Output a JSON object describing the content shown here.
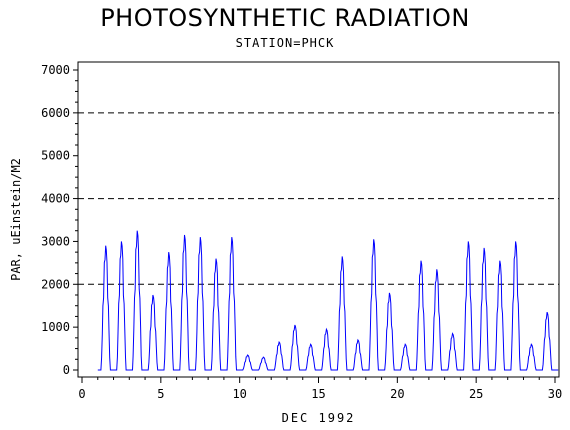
{
  "chart_data": {
    "type": "line",
    "title": "PHOTOSYNTHETIC RADIATION",
    "subtitle": "STATION=PHCK",
    "xlabel": "DEC 1992",
    "ylabel": "PAR, uEinstein/M2",
    "xlim": [
      0,
      30
    ],
    "ylim": [
      0,
      7000
    ],
    "x_ticks": [
      "0",
      "5",
      "10",
      "15",
      "20",
      "25",
      "30"
    ],
    "y_ticks": [
      "0",
      "1000",
      "2000",
      "3000",
      "4000",
      "5000",
      "6000",
      "7000"
    ],
    "reference_lines": [
      2000,
      4000,
      6000
    ],
    "grid": false,
    "legend": "none",
    "line_color": "#0000ff",
    "series": [
      {
        "daily_peaks": [
          {
            "day": 1.5,
            "peak": 2900
          },
          {
            "day": 2.5,
            "peak": 3000
          },
          {
            "day": 3.5,
            "peak": 3250
          },
          {
            "day": 4.5,
            "peak": 1750
          },
          {
            "day": 5.5,
            "peak": 2750
          },
          {
            "day": 6.5,
            "peak": 3150
          },
          {
            "day": 7.5,
            "peak": 3100
          },
          {
            "day": 8.5,
            "peak": 2600
          },
          {
            "day": 9.5,
            "peak": 3100
          },
          {
            "day": 10.5,
            "peak": 350
          },
          {
            "day": 11.5,
            "peak": 300
          },
          {
            "day": 12.5,
            "peak": 650
          },
          {
            "day": 13.5,
            "peak": 1050
          },
          {
            "day": 14.5,
            "peak": 600
          },
          {
            "day": 15.5,
            "peak": 950
          },
          {
            "day": 16.5,
            "peak": 2650
          },
          {
            "day": 17.5,
            "peak": 700
          },
          {
            "day": 18.5,
            "peak": 3050
          },
          {
            "day": 19.5,
            "peak": 1800
          },
          {
            "day": 20.5,
            "peak": 600
          },
          {
            "day": 21.5,
            "peak": 2550
          },
          {
            "day": 22.5,
            "peak": 2350
          },
          {
            "day": 23.5,
            "peak": 850
          },
          {
            "day": 24.5,
            "peak": 3000
          },
          {
            "day": 25.5,
            "peak": 2850
          },
          {
            "day": 26.5,
            "peak": 2550
          },
          {
            "day": 27.5,
            "peak": 3000
          },
          {
            "day": 28.5,
            "peak": 600
          },
          {
            "day": 29.5,
            "peak": 1350
          }
        ]
      }
    ]
  }
}
